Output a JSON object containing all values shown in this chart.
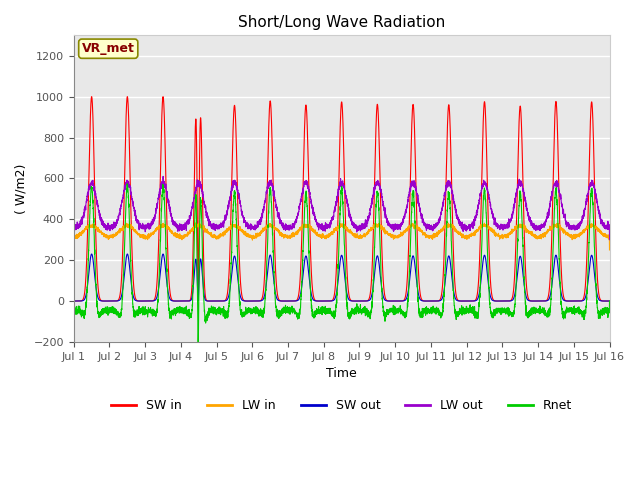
{
  "title": "Short/Long Wave Radiation",
  "xlabel": "Time",
  "ylabel": "( W/m2)",
  "ylim": [
    -200,
    1300
  ],
  "yticks": [
    -200,
    0,
    200,
    400,
    600,
    800,
    1000,
    1200
  ],
  "xlim_days": [
    0,
    15
  ],
  "xtick_labels": [
    "Jul 1",
    "Jul 2",
    "Jul 3",
    "Jul 4",
    "Jul 5",
    "Jul 6",
    "Jul 7",
    "Jul 8",
    "Jul 9",
    "Jul 10",
    "Jul 11",
    "Jul 12",
    "Jul 13",
    "Jul 14",
    "Jul 15",
    "Jul 16"
  ],
  "legend_labels": [
    "SW in",
    "LW in",
    "SW out",
    "LW out",
    "Rnet"
  ],
  "colors": {
    "SW_in": "#ff0000",
    "LW_in": "#ffa500",
    "SW_out": "#0000cc",
    "LW_out": "#9900cc",
    "Rnet": "#00cc00"
  },
  "annotation_text": "VR_met",
  "annotation_box_color": "#ffffcc",
  "annotation_box_edge": "#888800",
  "bg_color": "#ffffff",
  "plot_bg": "#e8e8e8",
  "title_fontsize": 11,
  "axis_fontsize": 9,
  "legend_fontsize": 9,
  "n_days": 15,
  "pts_per_day": 288
}
